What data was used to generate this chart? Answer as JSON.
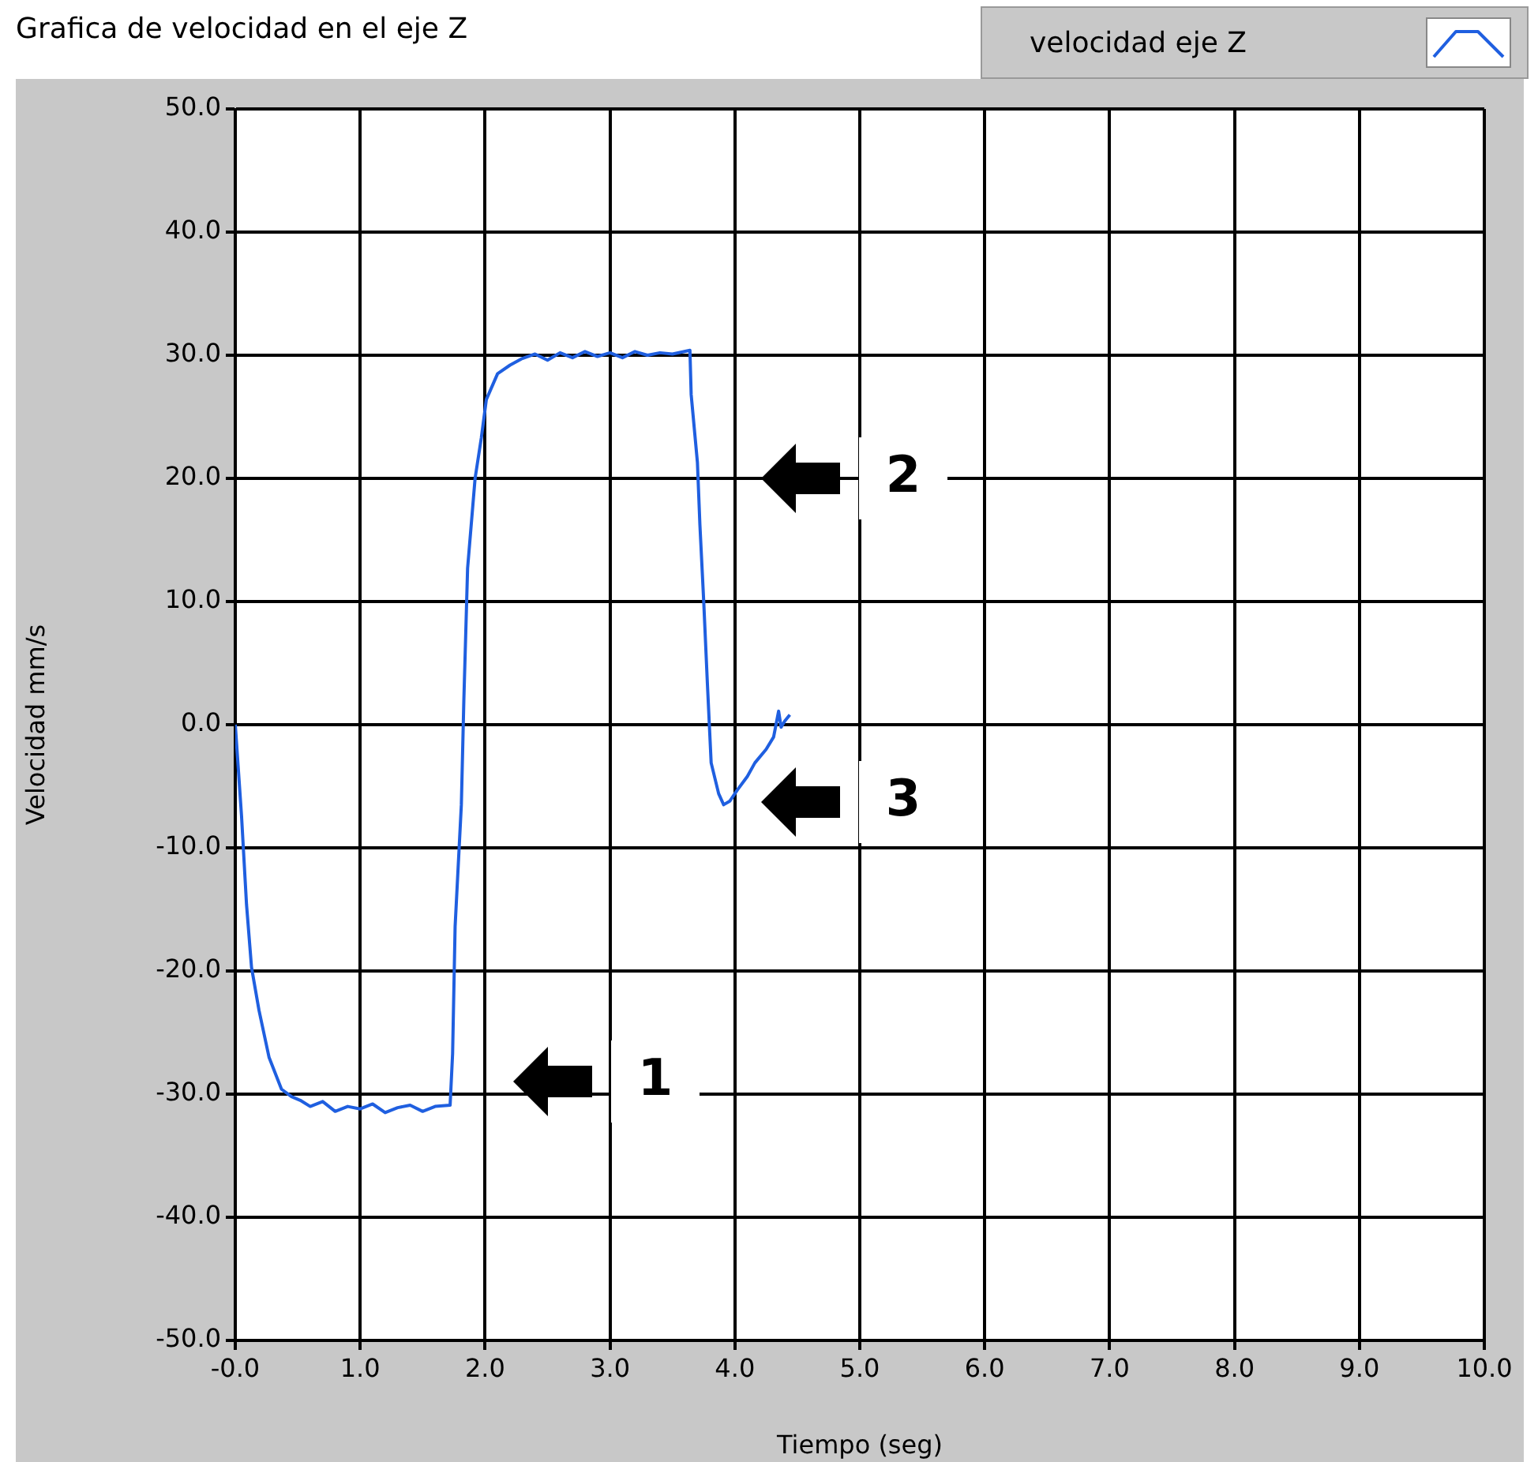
{
  "chart_data": {
    "type": "line",
    "title": "Grafica de velocidad en el eje Z",
    "xlabel": "Tiempo (seg)",
    "ylabel": "Velocidad mm/s",
    "series": [
      {
        "name": "velocidad eje Z",
        "color": "#1f5fe0",
        "x": [
          0,
          0.05,
          0.09,
          0.13,
          0.19,
          0.27,
          0.37,
          0.45,
          0.52,
          0.6,
          0.7,
          0.8,
          0.9,
          1.0,
          1.1,
          1.2,
          1.3,
          1.4,
          1.5,
          1.6,
          1.72,
          1.74,
          1.76,
          1.81,
          1.83,
          1.86,
          1.92,
          1.97,
          2.01,
          2.1,
          2.2,
          2.29,
          2.4,
          2.5,
          2.6,
          2.7,
          2.8,
          2.9,
          3.0,
          3.1,
          3.2,
          3.3,
          3.4,
          3.5,
          3.64,
          3.65,
          3.7,
          3.72,
          3.75,
          3.78,
          3.81,
          3.87,
          3.91,
          3.96,
          4.02,
          4.1,
          4.16,
          4.25,
          4.31,
          4.35,
          4.37,
          4.4,
          4.44
        ],
        "values": [
          0,
          -7.4,
          -14.6,
          -19.7,
          -23.2,
          -27,
          -29.6,
          -30.2,
          -30.5,
          -31,
          -30.6,
          -31.4,
          -31,
          -31.2,
          -30.8,
          -31.5,
          -31.1,
          -30.9,
          -31.4,
          -31,
          -30.9,
          -26.7,
          -16.4,
          -6.5,
          2,
          12.7,
          20,
          23.3,
          26.4,
          28.5,
          29.2,
          29.7,
          30.1,
          29.6,
          30.2,
          29.8,
          30.3,
          29.9,
          30.2,
          29.8,
          30.3,
          30,
          30.2,
          30.1,
          30.4,
          26.8,
          21.3,
          16.2,
          10.1,
          3.3,
          -3.1,
          -5.6,
          -6.5,
          -6.2,
          -5.3,
          -4.2,
          -3.1,
          -2,
          -1,
          1.1,
          -0.2,
          0.3,
          0.8
        ]
      }
    ],
    "xlim": [
      0,
      10
    ],
    "xticks": [
      {
        "value": 0,
        "label": "-0.0"
      },
      {
        "value": 1,
        "label": "1.0"
      },
      {
        "value": 2,
        "label": "2.0"
      },
      {
        "value": 3,
        "label": "3.0"
      },
      {
        "value": 4,
        "label": "4.0"
      },
      {
        "value": 5,
        "label": "5.0"
      },
      {
        "value": 6,
        "label": "6.0"
      },
      {
        "value": 7,
        "label": "7.0"
      },
      {
        "value": 8,
        "label": "8.0"
      },
      {
        "value": 9,
        "label": "9.0"
      },
      {
        "value": 10,
        "label": "10.0"
      }
    ],
    "ylim": [
      -50,
      50
    ],
    "yticks": [
      {
        "value": -50,
        "label": "-50.0"
      },
      {
        "value": -40,
        "label": "-40.0"
      },
      {
        "value": -30,
        "label": "-30.0"
      },
      {
        "value": -20,
        "label": "-20.0"
      },
      {
        "value": -10,
        "label": "-10.0"
      },
      {
        "value": 0,
        "label": "0.0"
      },
      {
        "value": 10,
        "label": "10.0"
      },
      {
        "value": 20,
        "label": "20.0"
      },
      {
        "value": 30,
        "label": "30.0"
      },
      {
        "value": 40,
        "label": "40.0"
      },
      {
        "value": 50,
        "label": "50.0"
      }
    ],
    "grid": true,
    "legend": "top right",
    "marker": "none",
    "line_style": "solid",
    "annotations": [
      "1",
      "2",
      "3"
    ]
  }
}
